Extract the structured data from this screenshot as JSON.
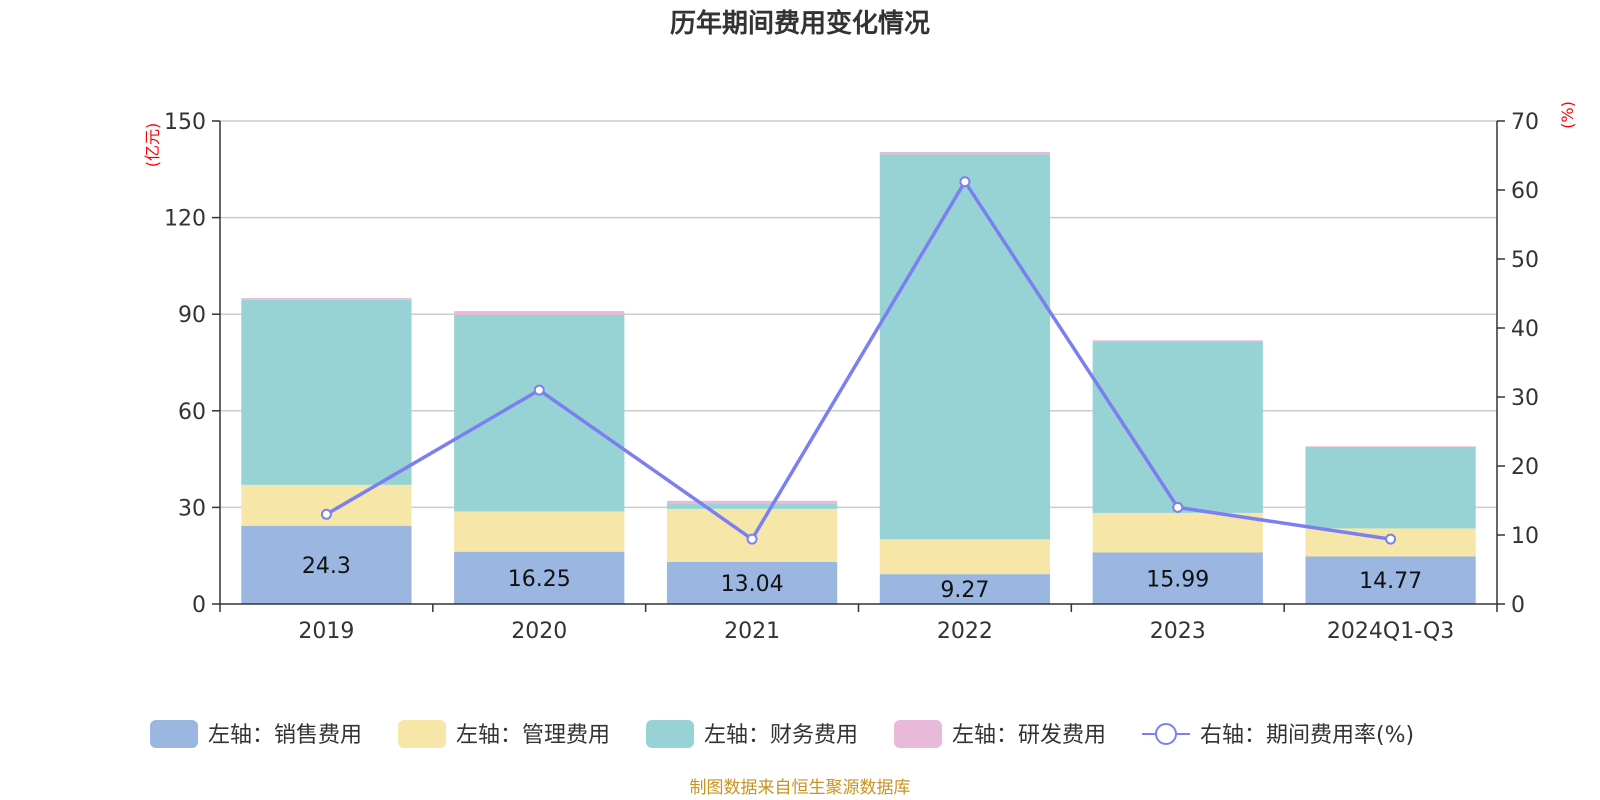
{
  "chart_data": {
    "type": "bar",
    "title": "历年期间费用变化情况",
    "categories": [
      "2019",
      "2020",
      "2021",
      "2022",
      "2023",
      "2024Q1-Q3"
    ],
    "series": [
      {
        "name": "左轴：销售费用",
        "axis": "left",
        "type": "bar",
        "color": "#9bb6e1",
        "values": [
          24.3,
          16.25,
          13.04,
          9.27,
          15.99,
          14.77
        ],
        "labels": [
          "24.3",
          "16.25",
          "13.04",
          "9.27",
          "15.99",
          "14.77"
        ]
      },
      {
        "name": "左轴：管理费用",
        "axis": "left",
        "type": "bar",
        "color": "#f6e7a9",
        "values": [
          12.7,
          12.5,
          16.5,
          10.8,
          12.3,
          8.7
        ]
      },
      {
        "name": "左轴：财务费用",
        "axis": "left",
        "type": "bar",
        "color": "#97d3d4",
        "values": [
          57.5,
          61.0,
          1.5,
          119.6,
          53.2,
          25.3
        ]
      },
      {
        "name": "左轴：研发费用",
        "axis": "left",
        "type": "bar",
        "color": "#e8b9d9",
        "values": [
          0.5,
          1.2,
          1.0,
          0.7,
          0.4,
          0.2
        ]
      },
      {
        "name": "右轴：期间费用率(%)",
        "axis": "right",
        "type": "line",
        "color": "#7b7ff0",
        "values": [
          13.0,
          31.0,
          9.4,
          61.2,
          14.0,
          9.4
        ]
      }
    ],
    "y_left": {
      "unit": "(亿元)",
      "ylim": [
        0,
        150
      ],
      "ticks": [
        0,
        30,
        60,
        90,
        120,
        150
      ]
    },
    "y_right": {
      "unit": "(%)",
      "ylim": [
        0,
        70
      ],
      "ticks": [
        0,
        10,
        20,
        30,
        40,
        50,
        60,
        70
      ]
    },
    "grid": true,
    "legend_position": "bottom",
    "source": "制图数据来自恒生聚源数据库"
  }
}
